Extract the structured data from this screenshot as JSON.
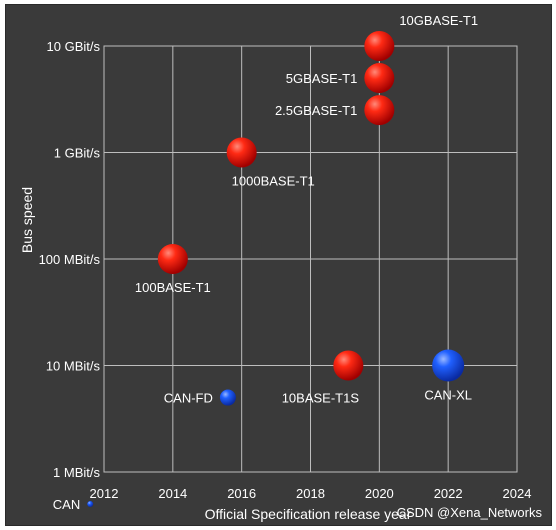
{
  "chart_data": {
    "type": "scatter",
    "title": "",
    "xlabel": "Official Specification release year",
    "ylabel": "Bus speed",
    "x_scale": "linear",
    "y_scale": "log",
    "xlim": [
      2012,
      2024
    ],
    "x_ticks": [
      2012,
      2014,
      2016,
      2018,
      2020,
      2022,
      2024
    ],
    "ylim_mbit_s": [
      1,
      10000
    ],
    "y_ticks": [
      {
        "value": 1,
        "label": "1 MBit/s"
      },
      {
        "value": 10,
        "label": "10 MBit/s"
      },
      {
        "value": 100,
        "label": "100 MBit/s"
      },
      {
        "value": 1000,
        "label": "1 GBit/s"
      },
      {
        "value": 10000,
        "label": "10 GBit/s"
      }
    ],
    "grid": true,
    "points": [
      {
        "label": "10GBASE-T1",
        "x": 2020,
        "y": 10000,
        "color": "#e01010",
        "label_side": "right-above"
      },
      {
        "label": "5GBASE-T1",
        "x": 2020,
        "y": 5000,
        "color": "#e01010",
        "label_side": "left"
      },
      {
        "label": "2.5GBASE-T1",
        "x": 2020,
        "y": 2500,
        "color": "#e01010",
        "label_side": "left"
      },
      {
        "label": "1000BASE-T1",
        "x": 2016,
        "y": 1000,
        "color": "#e01010",
        "label_side": "below-right"
      },
      {
        "label": "100BASE-T1",
        "x": 2014,
        "y": 100,
        "color": "#e01010",
        "label_side": "below"
      },
      {
        "label": "10BASE-T1S",
        "x": 2019.1,
        "y": 10,
        "color": "#e01010",
        "label_side": "below-left"
      },
      {
        "label": "CAN-XL",
        "x": 2022,
        "y": 10,
        "color": "#1848f0",
        "label_side": "below"
      },
      {
        "label": "CAN-FD",
        "x": 2015.6,
        "y": 5,
        "color": "#1848f0",
        "label_side": "left"
      },
      {
        "label": "CAN",
        "x": 2011.6,
        "y": 0.5,
        "color": "#1848f0",
        "label_side": "left"
      }
    ]
  },
  "watermark": "CSDN @Xena_Networks"
}
